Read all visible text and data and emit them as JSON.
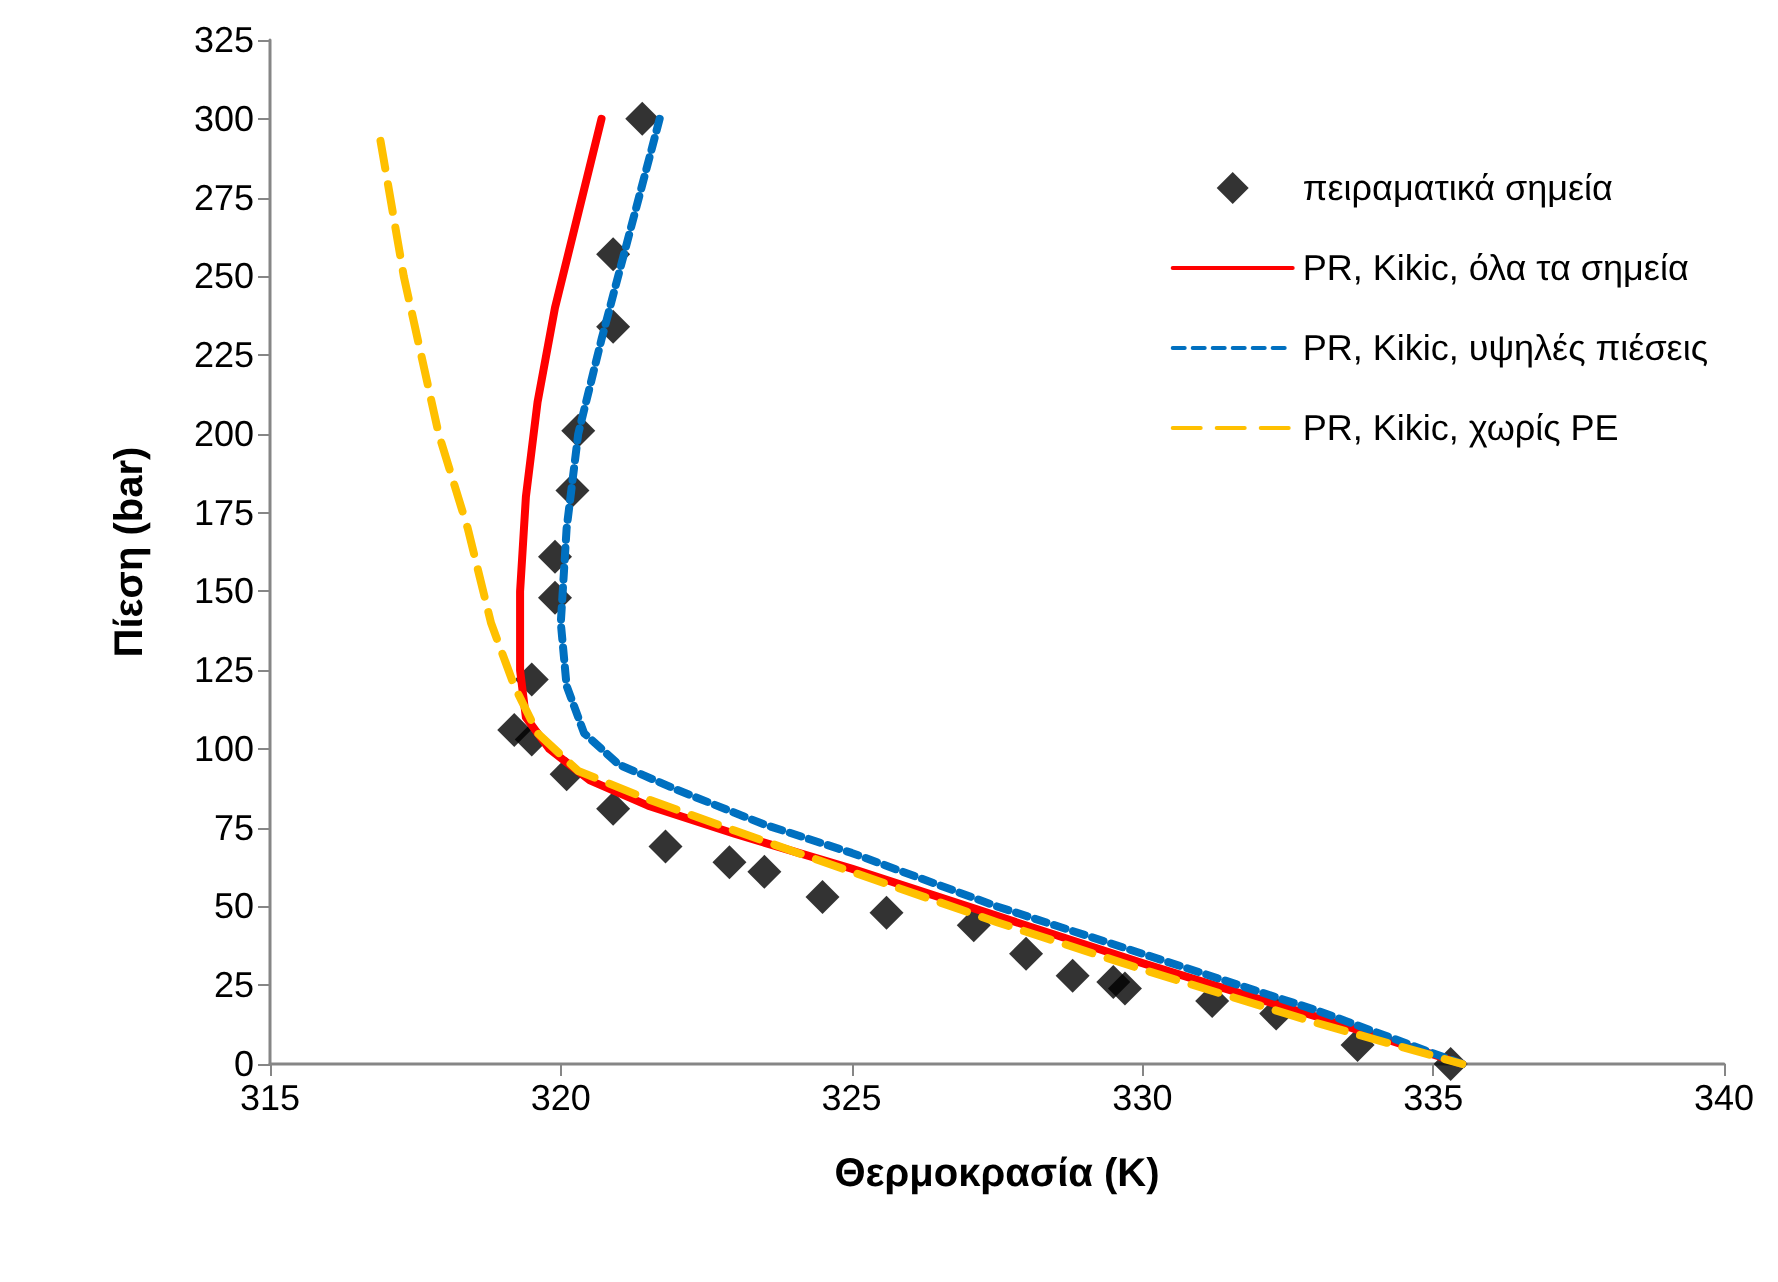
{
  "chart_data": {
    "type": "scatter",
    "xlabel": "Θερμοκρασία (K)",
    "ylabel": "Πίεση (bar)",
    "xlim": [
      315,
      340
    ],
    "xticks": [
      315,
      320,
      325,
      330,
      335,
      340
    ],
    "ylim": [
      0,
      325
    ],
    "yticks": [
      0,
      25,
      50,
      75,
      100,
      125,
      150,
      175,
      200,
      225,
      250,
      275,
      300,
      325
    ],
    "grid": false,
    "legend": "top right",
    "series": [
      {
        "name": "πειραματικά σημεία",
        "marker": "diamond",
        "color": "#000000",
        "x": [
          321.4,
          320.9,
          320.9,
          320.3,
          320.2,
          319.9,
          319.9,
          319.5,
          319.2,
          319.5,
          320.1,
          320.9,
          321.8,
          322.9,
          323.5,
          324.5,
          325.6,
          327.1,
          328,
          328.8,
          329.5,
          329.7,
          331.2,
          332.3,
          333.7,
          335.3
        ],
        "values": [
          300,
          257,
          234,
          201,
          182,
          161,
          148,
          122,
          106,
          103,
          92,
          81,
          69,
          64,
          61,
          53,
          48,
          44,
          35,
          28,
          26,
          24,
          20,
          16,
          6,
          0
        ]
      },
      {
        "name": "PR, Kikic, όλα τα σημεία",
        "type": "line",
        "marker": "none",
        "line_style": "solid",
        "color": "#ff0000",
        "x": [
          320.7,
          320.3,
          319.9,
          319.6,
          319.4,
          319.3,
          319.3,
          319.4,
          319.8,
          320.5,
          321.5,
          323,
          325,
          327.5,
          330,
          333,
          335.5
        ],
        "values": [
          300,
          270,
          240,
          210,
          180,
          150,
          125,
          110,
          100,
          90,
          82,
          73,
          62,
          47,
          32,
          15,
          0
        ]
      },
      {
        "name": "PR, Kikic, υψηλές πιέσεις",
        "type": "line",
        "marker": "none",
        "line_style": "dotted",
        "color": "#0070c0",
        "x": [
          321.7,
          321.2,
          320.7,
          320.3,
          320.1,
          320,
          320.1,
          320.4,
          321,
          322,
          323.5,
          325,
          327.5,
          330,
          333,
          335.5
        ],
        "values": [
          300,
          265,
          230,
          200,
          170,
          140,
          120,
          105,
          95,
          87,
          76,
          67,
          50,
          35,
          17,
          0
        ]
      },
      {
        "name": "PR, Kikic, χωρίς PE",
        "type": "line",
        "marker": "none",
        "line_style": "dashed",
        "color": "#ffc000",
        "x": [
          316.9,
          317.3,
          317.9,
          318.4,
          318.8,
          319.2,
          319.6,
          320.3,
          321.5,
          323,
          325,
          327.5,
          330,
          333,
          335.5
        ],
        "values": [
          293,
          250,
          200,
          170,
          140,
          120,
          105,
          93,
          84,
          74,
          61,
          45,
          30,
          13,
          0
        ]
      }
    ]
  }
}
